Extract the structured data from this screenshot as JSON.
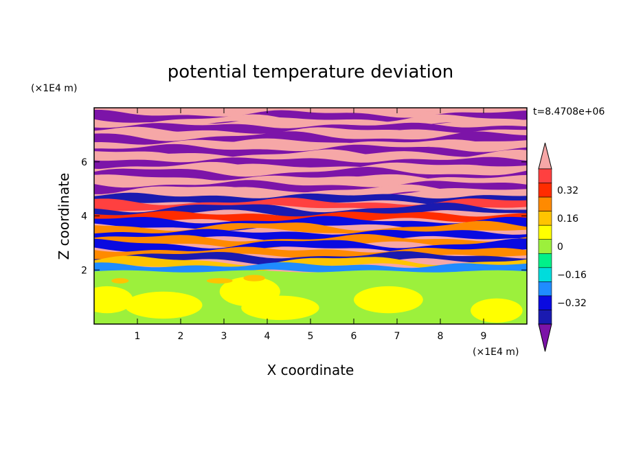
{
  "chart_data": {
    "type": "heatmap",
    "title": "potential temperature deviation",
    "xlabel": "X coordinate",
    "ylabel": "Z coordinate",
    "x_unit": "(×1E4 m)",
    "y_unit": "(×1E4 m)",
    "time_label": "t=8.4708e+06",
    "xlim": [
      0,
      10
    ],
    "ylim": [
      0,
      8
    ],
    "x_ticks": [
      "1",
      "2",
      "3",
      "4",
      "5",
      "6",
      "7",
      "8",
      "9"
    ],
    "y_ticks": [
      "2",
      "4",
      "6"
    ],
    "colorbar": {
      "levels": [
        -0.48,
        -0.4,
        -0.32,
        -0.24,
        -0.16,
        -0.08,
        0,
        0.08,
        0.16,
        0.24,
        0.32,
        0.4,
        0.48
      ],
      "colors": [
        "#7c14a8",
        "#1a1ab0",
        "#0a0ae0",
        "#1f8cff",
        "#00dcdc",
        "#00f08a",
        "#9cf03c",
        "#ffff00",
        "#ffc400",
        "#ff8a00",
        "#ff2c00",
        "#ff4040",
        "#f6a7a7"
      ],
      "tick_labels": [
        "0.32",
        "0.16",
        "0",
        "−0.16",
        "−0.32"
      ],
      "tick_values": [
        0.32,
        0.16,
        0,
        -0.16,
        -0.32
      ],
      "extend": "both"
    },
    "field": {
      "bands_z": [
        {
          "z": 7.82,
          "value": 0.48
        },
        {
          "z": 7.65,
          "value": -0.48
        },
        {
          "z": 7.45,
          "value": 0.48
        },
        {
          "z": 7.22,
          "value": -0.48
        },
        {
          "z": 7.02,
          "value": 0.48
        },
        {
          "z": 6.82,
          "value": -0.48
        },
        {
          "z": 6.6,
          "value": 0.48
        },
        {
          "z": 6.38,
          "value": -0.48
        },
        {
          "z": 6.15,
          "value": 0.48
        },
        {
          "z": 5.95,
          "value": -0.48
        },
        {
          "z": 5.72,
          "value": 0.48
        },
        {
          "z": 5.5,
          "value": -0.48
        },
        {
          "z": 5.28,
          "value": 0.48
        },
        {
          "z": 5.05,
          "value": -0.48
        },
        {
          "z": 4.85,
          "value": 0.48
        },
        {
          "z": 4.62,
          "value": -0.4
        },
        {
          "z": 4.4,
          "value": 0.4
        },
        {
          "z": 4.18,
          "value": -0.4
        },
        {
          "z": 3.95,
          "value": 0.32
        },
        {
          "z": 3.72,
          "value": -0.32
        },
        {
          "z": 3.5,
          "value": 0.24
        },
        {
          "z": 3.28,
          "value": -0.32
        },
        {
          "z": 3.05,
          "value": 0.24
        },
        {
          "z": 2.85,
          "value": -0.32
        },
        {
          "z": 2.62,
          "value": 0.24
        },
        {
          "z": 2.42,
          "value": -0.4
        },
        {
          "z": 2.22,
          "value": 0.16
        },
        {
          "z": 2.05,
          "value": -0.24
        }
      ],
      "lower_layer": {
        "z_top": 1.95,
        "value_range": [
          0.0,
          0.16
        ]
      }
    }
  }
}
